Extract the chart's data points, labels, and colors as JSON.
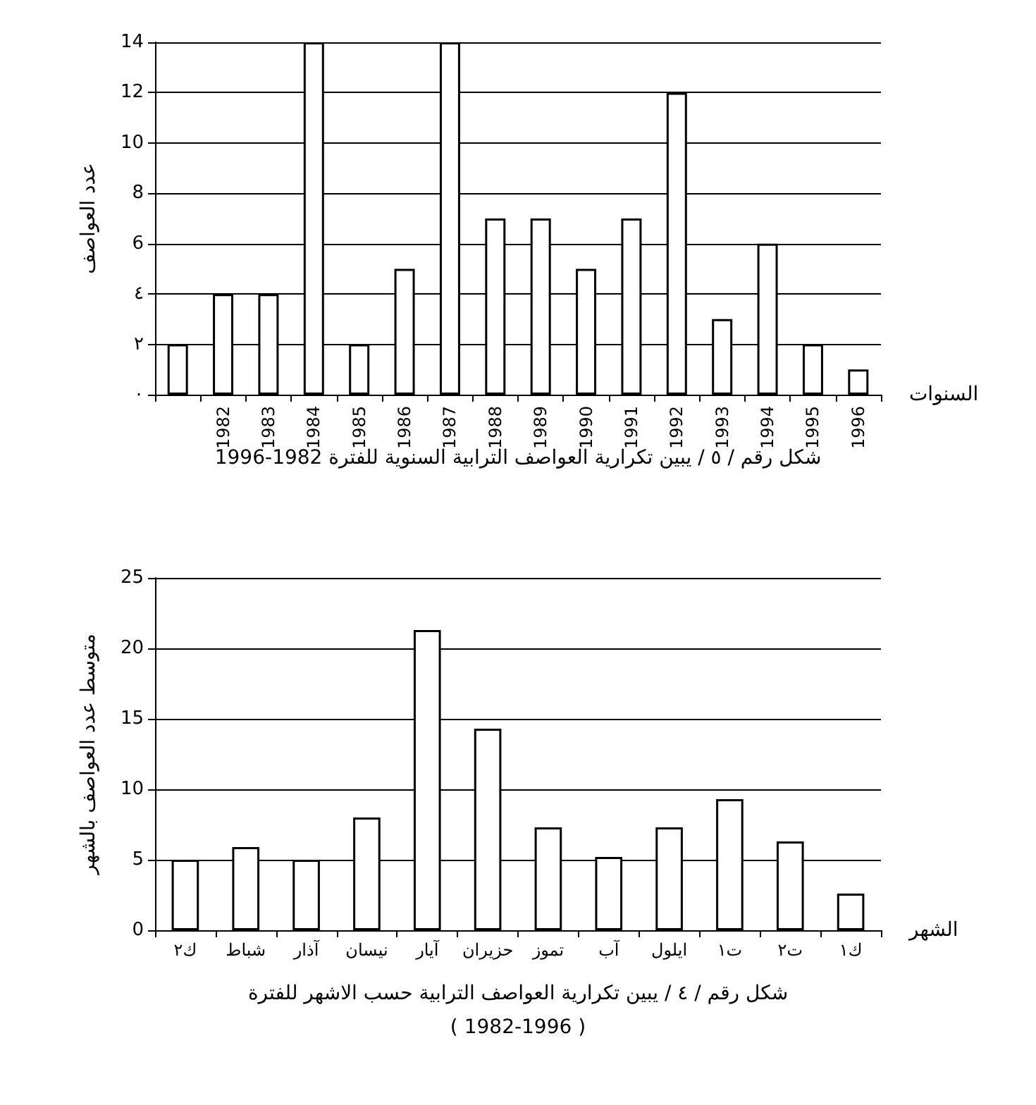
{
  "chart_data": [
    {
      "type": "bar",
      "xlabel": "السنوات",
      "ylabel": "عدد العواصف",
      "categories": [
        null,
        "1982",
        "1983",
        "1984",
        "1985",
        "1986",
        "1987",
        "1988",
        "1989",
        "1990",
        "1991",
        "1992",
        "1993",
        "1994",
        "1995",
        "1996"
      ],
      "values": [
        2,
        4,
        4,
        14,
        2,
        5,
        14,
        7,
        7,
        5,
        7,
        12,
        3,
        6,
        2,
        1
      ],
      "color": "#ffffff",
      "ylim": [
        0,
        14
      ],
      "yticks": [
        {
          "value": 0,
          "label": "٠"
        },
        {
          "value": 2,
          "label": "٢"
        },
        {
          "value": 4,
          "label": "٤"
        },
        6,
        8,
        10,
        12,
        14
      ],
      "grid": "y",
      "annotations": [
        "شكل رقم / ٥ / يبين تكرارية العواصف الترابية السنوية للفترة 1982-1996"
      ]
    },
    {
      "type": "bar",
      "xlabel": "الشهر",
      "ylabel": "متوسط عدد العواصف بالشهر",
      "categories": [
        "ك٢",
        "شباط",
        "آذار",
        "نيسان",
        "آيار",
        "حزيران",
        "تموز",
        "آب",
        "ايلول",
        "ت١",
        "ت٢",
        "ك١"
      ],
      "values": [
        5,
        5.9,
        5,
        8,
        21.3,
        14.3,
        7.3,
        5.2,
        7.3,
        9.3,
        6.3,
        2.6
      ],
      "color": "#ffffff",
      "ylim": [
        0,
        25
      ],
      "yticks": [
        0,
        5,
        10,
        15,
        20,
        25
      ],
      "grid": "y",
      "annotations": [
        "شكل رقم / ٤ / يبين تكرارية العواصف الترابية حسب الاشهر للفترة",
        "( 1982-1996 )"
      ]
    }
  ]
}
